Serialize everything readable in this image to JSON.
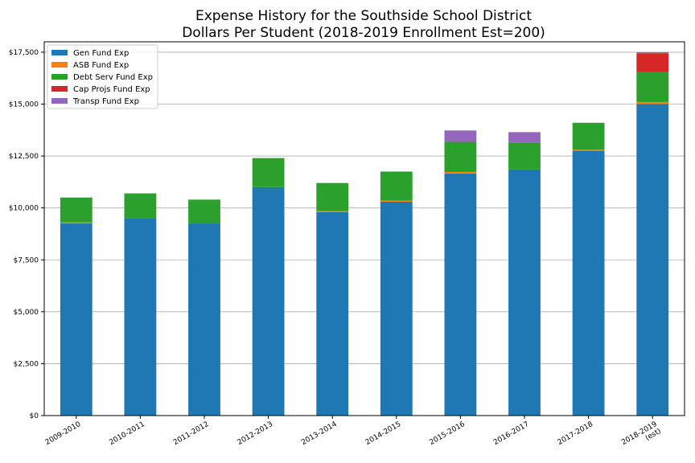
{
  "chart_data": {
    "type": "bar",
    "stacked": true,
    "title": "Expense History for the Southside School District",
    "subtitle": "Dollars Per Student (2018-2019 Enrollment Est=200)",
    "xlabel": "",
    "ylabel": "",
    "ylim": [
      0,
      18000
    ],
    "y_ticks": [
      0,
      2500,
      5000,
      7500,
      10000,
      12500,
      15000,
      17500
    ],
    "y_tick_labels": [
      "$0",
      "$2,500",
      "$5,000",
      "$7,500",
      "$10,000",
      "$12,500",
      "$15,000",
      "$17,500"
    ],
    "grid": "horizontal",
    "legend_position": "top-left",
    "categories": [
      "2009-2010",
      "2010-2011",
      "2011-2012",
      "2012-2013",
      "2013-2014",
      "2014-2015",
      "2015-2016",
      "2016-2017",
      "2017-2018",
      "2018-2019\n(est)"
    ],
    "series": [
      {
        "name": "Gen Fund Exp",
        "color": "#1f77b4",
        "values": [
          9250,
          9500,
          9250,
          11000,
          9800,
          10300,
          11650,
          11850,
          12750,
          15000
        ]
      },
      {
        "name": "ASB Fund Exp",
        "color": "#ff7f0e",
        "values": [
          50,
          0,
          0,
          0,
          50,
          50,
          80,
          0,
          50,
          100
        ]
      },
      {
        "name": "Debt Serv Fund Exp",
        "color": "#2ca02c",
        "values": [
          1200,
          1200,
          1150,
          1400,
          1350,
          1400,
          1450,
          1300,
          1300,
          1450
        ]
      },
      {
        "name": "Cap Projs Fund Exp",
        "color": "#d62728",
        "values": [
          0,
          0,
          0,
          0,
          0,
          0,
          0,
          0,
          0,
          900
        ]
      },
      {
        "name": "Transp Fund Exp",
        "color": "#9467bd",
        "values": [
          0,
          0,
          0,
          0,
          0,
          0,
          550,
          500,
          0,
          50
        ]
      }
    ]
  }
}
